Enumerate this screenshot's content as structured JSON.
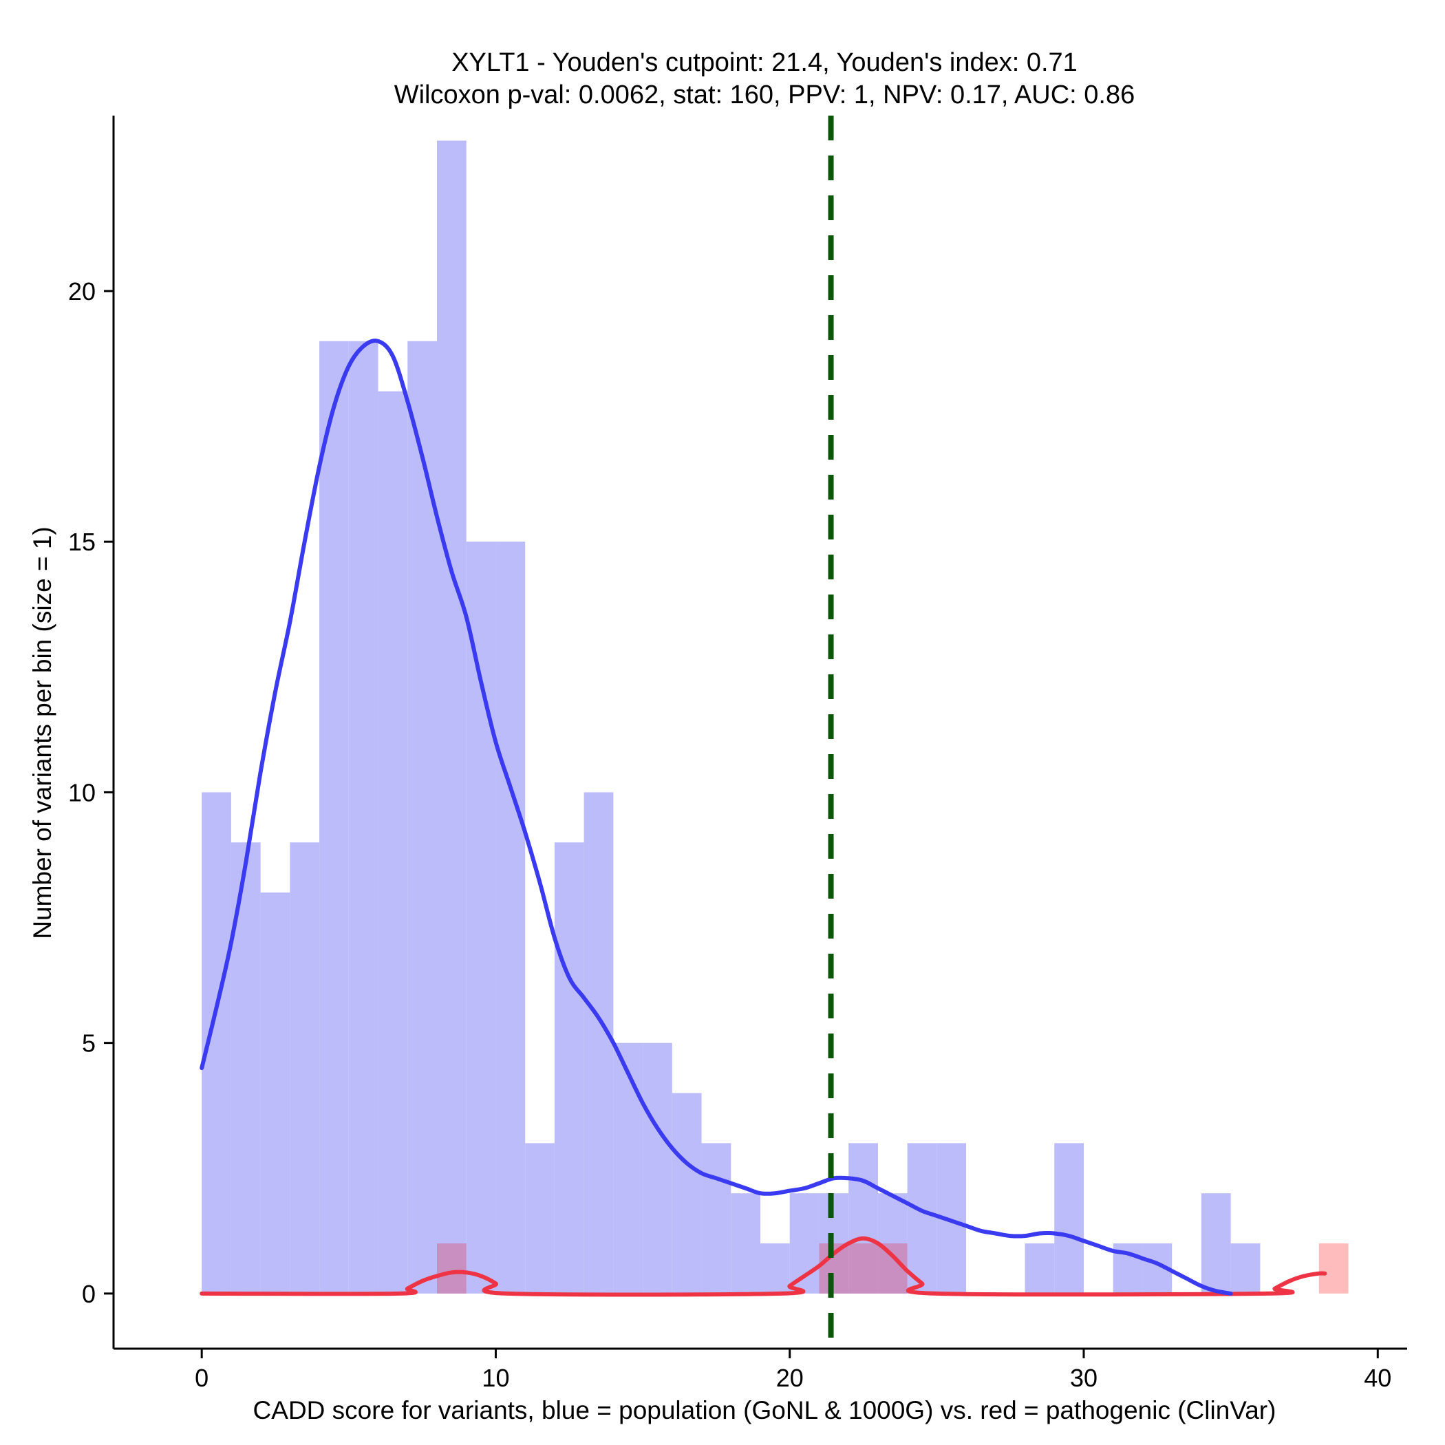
{
  "chart_data": {
    "type": "histogram",
    "title_line1": "XYLT1 - Youden's cutpoint: 21.4, Youden's index: 0.71",
    "title_line2": "Wilcoxon p-val: 0.0062, stat: 160, PPV: 1, NPV: 0.17, AUC: 0.86",
    "xlabel": "CADD score for variants, blue = population (GoNL & 1000G) vs. red = pathogenic (ClinVar)",
    "ylabel": "Number of variants per bin (size = 1)",
    "xlim": [
      -3,
      41
    ],
    "ylim": [
      -1.1,
      23.5
    ],
    "xticks": [
      0,
      10,
      20,
      30,
      40
    ],
    "yticks": [
      0,
      5,
      10,
      15,
      20
    ],
    "bin_size": 1,
    "cutpoint": 21.4,
    "colors": {
      "population_bar": "#bcbcfa",
      "pathogenic_bar": "#ffbcbc",
      "overlap_bar": "#c98fc0",
      "population_line": "#3a3af0",
      "pathogenic_line": "#ee3344",
      "cutpoint_line": "#0b560b"
    },
    "series": [
      {
        "name": "population (GoNL & 1000G)",
        "bin_starts": [
          0,
          1,
          2,
          3,
          4,
          5,
          6,
          7,
          8,
          9,
          10,
          11,
          12,
          13,
          14,
          15,
          16,
          17,
          18,
          19,
          20,
          21,
          22,
          23,
          24,
          25,
          26,
          27,
          28,
          29,
          30,
          31,
          32,
          33,
          34,
          35,
          36,
          37,
          38
        ],
        "values": [
          10,
          9,
          8,
          9,
          19,
          19,
          18,
          19,
          23,
          15,
          15,
          3,
          9,
          10,
          5,
          5,
          4,
          3,
          2,
          1,
          2,
          2,
          3,
          2,
          3,
          3,
          0,
          0,
          1,
          3,
          0,
          1,
          1,
          0,
          2,
          1,
          0,
          0,
          0
        ],
        "density_curve": [
          [
            0,
            4.5
          ],
          [
            0.5,
            5.7
          ],
          [
            1,
            7
          ],
          [
            1.5,
            8.6
          ],
          [
            2,
            10.4
          ],
          [
            2.5,
            12
          ],
          [
            3,
            13.4
          ],
          [
            3.5,
            15
          ],
          [
            4,
            16.5
          ],
          [
            4.5,
            17.7
          ],
          [
            5,
            18.5
          ],
          [
            5.5,
            18.9
          ],
          [
            6,
            19
          ],
          [
            6.5,
            18.7
          ],
          [
            7,
            17.8
          ],
          [
            7.5,
            16.7
          ],
          [
            8,
            15.5
          ],
          [
            8.5,
            14.4
          ],
          [
            9,
            13.5
          ],
          [
            9.5,
            12.2
          ],
          [
            10,
            11
          ],
          [
            10.5,
            10.1
          ],
          [
            11,
            9.2
          ],
          [
            11.5,
            8.2
          ],
          [
            12,
            7.1
          ],
          [
            12.5,
            6.3
          ],
          [
            13,
            5.9
          ],
          [
            13.5,
            5.5
          ],
          [
            14,
            5
          ],
          [
            14.5,
            4.4
          ],
          [
            15,
            3.8
          ],
          [
            15.5,
            3.3
          ],
          [
            16,
            2.9
          ],
          [
            16.5,
            2.6
          ],
          [
            17,
            2.4
          ],
          [
            17.5,
            2.3
          ],
          [
            18,
            2.2
          ],
          [
            18.5,
            2.1
          ],
          [
            19,
            2.0
          ],
          [
            19.5,
            2.0
          ],
          [
            20,
            2.05
          ],
          [
            20.5,
            2.1
          ],
          [
            21,
            2.2
          ],
          [
            21.5,
            2.3
          ],
          [
            22,
            2.3
          ],
          [
            22.5,
            2.25
          ],
          [
            23,
            2.1
          ],
          [
            23.5,
            1.95
          ],
          [
            24,
            1.8
          ],
          [
            24.5,
            1.65
          ],
          [
            25,
            1.55
          ],
          [
            25.5,
            1.45
          ],
          [
            26,
            1.35
          ],
          [
            26.5,
            1.25
          ],
          [
            27,
            1.2
          ],
          [
            27.5,
            1.15
          ],
          [
            28,
            1.15
          ],
          [
            28.5,
            1.2
          ],
          [
            29,
            1.2
          ],
          [
            29.5,
            1.15
          ],
          [
            30,
            1.05
          ],
          [
            30.5,
            0.95
          ],
          [
            31,
            0.85
          ],
          [
            31.5,
            0.8
          ],
          [
            32,
            0.7
          ],
          [
            32.5,
            0.6
          ],
          [
            33,
            0.45
          ],
          [
            33.5,
            0.3
          ],
          [
            34,
            0.15
          ],
          [
            34.5,
            0.05
          ],
          [
            35,
            0
          ]
        ]
      },
      {
        "name": "pathogenic (ClinVar)",
        "bin_starts": [
          8,
          21,
          22,
          23,
          38
        ],
        "values": [
          1,
          1,
          1,
          1,
          1
        ],
        "density_curve": [
          [
            0,
            0
          ],
          [
            6.7,
            0
          ],
          [
            7,
            0.1
          ],
          [
            7.5,
            0.25
          ],
          [
            8,
            0.35
          ],
          [
            8.5,
            0.42
          ],
          [
            9,
            0.42
          ],
          [
            9.5,
            0.35
          ],
          [
            10,
            0.2
          ],
          [
            10.4,
            0
          ],
          [
            19.7,
            0
          ],
          [
            20,
            0.15
          ],
          [
            20.5,
            0.35
          ],
          [
            21,
            0.55
          ],
          [
            21.5,
            0.8
          ],
          [
            22,
            1.0
          ],
          [
            22.5,
            1.1
          ],
          [
            23,
            1.0
          ],
          [
            23.5,
            0.75
          ],
          [
            24,
            0.45
          ],
          [
            24.5,
            0.2
          ],
          [
            25,
            0
          ],
          [
            36.2,
            0
          ],
          [
            36.5,
            0.1
          ],
          [
            37,
            0.25
          ],
          [
            37.5,
            0.35
          ],
          [
            38,
            0.4
          ],
          [
            38.2,
            0.4
          ]
        ]
      }
    ]
  }
}
